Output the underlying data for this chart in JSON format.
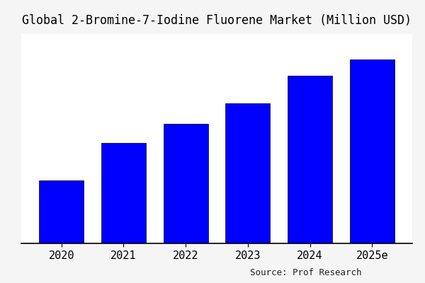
{
  "title": "Global 2-Bromine-7-Iodine Fluorene Market (Million USD)",
  "categories": [
    "2020",
    "2021",
    "2022",
    "2023",
    "2024",
    "2025e"
  ],
  "values": [
    30,
    48,
    57,
    67,
    80,
    88
  ],
  "bar_color": "#0000FF",
  "background_color": "#f5f5f5",
  "plot_bg_color": "#ffffff",
  "source_text": "Source: Prof Research",
  "title_fontsize": 12,
  "tick_fontsize": 11,
  "source_fontsize": 9,
  "bar_width": 0.72,
  "ylim": [
    0,
    100
  ]
}
